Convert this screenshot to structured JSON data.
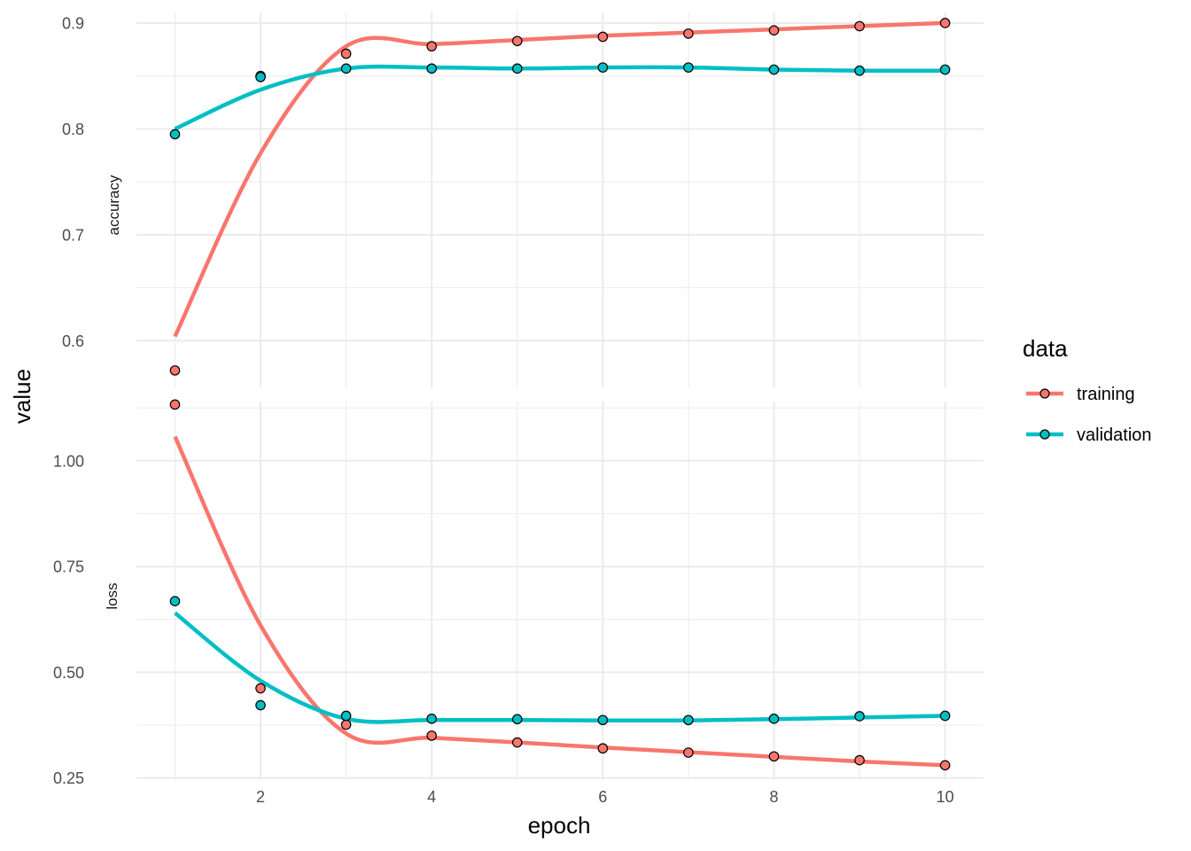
{
  "chart_data": {
    "type": "line",
    "xlabel": "epoch",
    "ylabel": "value",
    "x": [
      1,
      2,
      3,
      4,
      5,
      6,
      7,
      8,
      9,
      10
    ],
    "x_ticks": [
      "2",
      "4",
      "6",
      "8",
      "10"
    ],
    "x_tick_values": [
      2,
      4,
      6,
      8,
      10
    ],
    "xlim": [
      0.55,
      10.45
    ],
    "legend": {
      "title": "data",
      "position": "right",
      "entries": [
        "training",
        "validation"
      ]
    },
    "colors": {
      "training": "#F8766D",
      "validation": "#00BFC4",
      "grid": "#EBEBEB",
      "text": "#4D4D4D"
    },
    "grid": true,
    "panels": [
      {
        "name": "accuracy",
        "ylim": [
          0.556,
          0.91
        ],
        "y_ticks": [
          "0.6",
          "0.7",
          "0.8",
          "0.9"
        ],
        "y_tick_values": [
          0.6,
          0.7,
          0.8,
          0.9
        ],
        "series": [
          {
            "name": "training",
            "values": [
              0.572,
              0.85,
              0.871,
              0.878,
              0.883,
              0.887,
              0.89,
              0.893,
              0.897,
              0.9
            ],
            "smooth": [
              0.604,
              0.777,
              0.878,
              0.88,
              0.884,
              0.888,
              0.891,
              0.894,
              0.897,
              0.9
            ]
          },
          {
            "name": "validation",
            "values": [
              0.795,
              0.849,
              0.857,
              0.857,
              0.857,
              0.858,
              0.858,
              0.856,
              0.855,
              0.856
            ],
            "smooth": [
              0.8,
              0.837,
              0.857,
              0.858,
              0.857,
              0.858,
              0.858,
              0.856,
              0.855,
              0.855
            ]
          }
        ]
      },
      {
        "name": "loss",
        "ylim": [
          0.245,
          1.14
        ],
        "y_ticks": [
          "0.25",
          "0.50",
          "0.75",
          "1.00"
        ],
        "y_tick_values": [
          0.25,
          0.5,
          0.75,
          1.0
        ],
        "series": [
          {
            "name": "training",
            "values": [
              1.133,
              0.462,
              0.376,
              0.35,
              0.334,
              0.32,
              0.31,
              0.301,
              0.292,
              0.28
            ],
            "smooth": [
              1.057,
              0.611,
              0.355,
              0.345,
              0.334,
              0.322,
              0.311,
              0.3,
              0.289,
              0.28
            ]
          },
          {
            "name": "validation",
            "values": [
              0.668,
              0.422,
              0.397,
              0.39,
              0.389,
              0.387,
              0.387,
              0.39,
              0.396,
              0.397
            ],
            "smooth": [
              0.64,
              0.48,
              0.39,
              0.387,
              0.387,
              0.386,
              0.386,
              0.389,
              0.393,
              0.397
            ]
          }
        ]
      }
    ]
  }
}
